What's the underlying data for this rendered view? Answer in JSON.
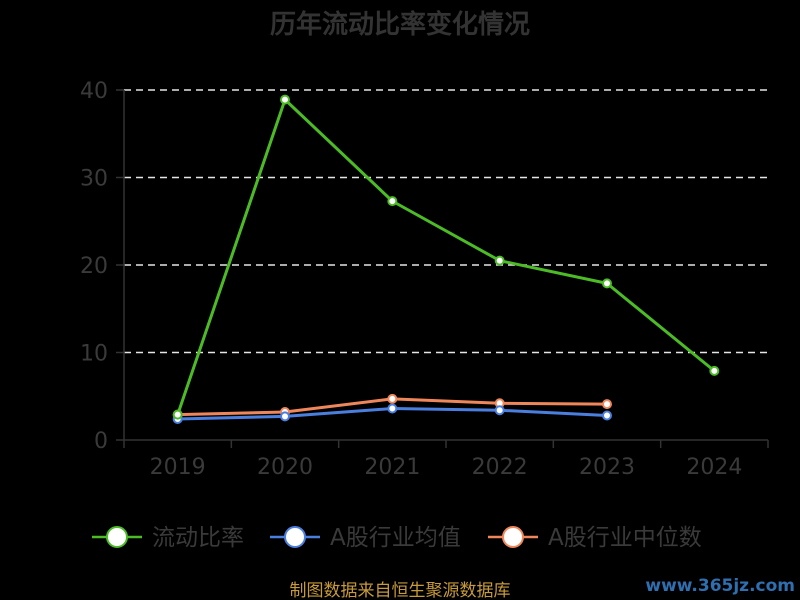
{
  "chart_data": {
    "type": "line",
    "title": "历年流动比率变化情况",
    "categories": [
      "2019",
      "2020",
      "2021",
      "2022",
      "2023",
      "2024"
    ],
    "ylim": [
      0,
      40
    ],
    "yticks": [
      0,
      10,
      20,
      30,
      40
    ],
    "grid": true,
    "legend_position": "bottom",
    "series": [
      {
        "name": "流动比率",
        "color": "#4cbb26",
        "values": [
          2.9,
          38.9,
          27.3,
          20.5,
          17.9,
          7.9
        ]
      },
      {
        "name": "A股行业均值",
        "color": "#4a7fe0",
        "values": [
          2.4,
          2.7,
          3.6,
          3.4,
          2.8,
          null
        ]
      },
      {
        "name": "A股行业中位数",
        "color": "#f0875a",
        "values": [
          2.9,
          3.2,
          4.7,
          4.2,
          4.1,
          null
        ]
      }
    ]
  },
  "footer": {
    "source": "制图数据来自恒生聚源数据库",
    "watermark": "www.365jz.com"
  }
}
